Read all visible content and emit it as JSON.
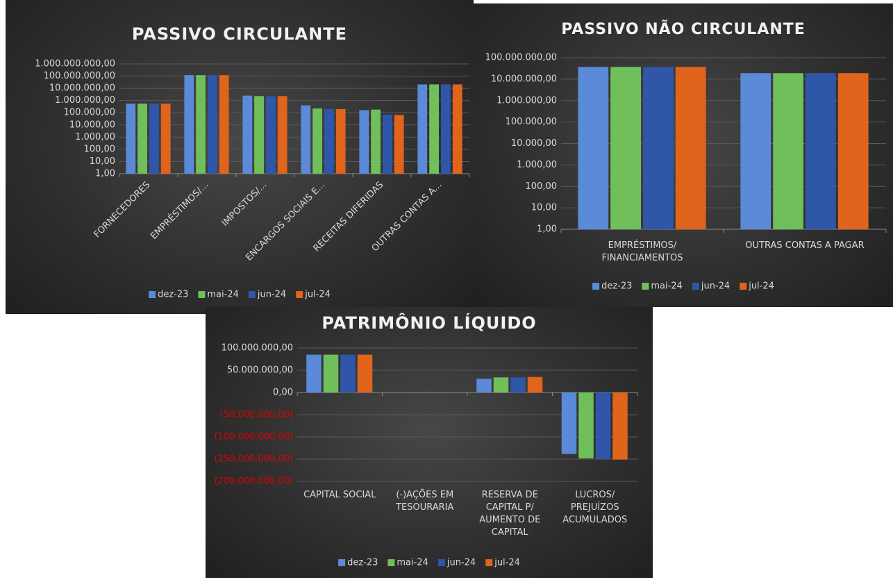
{
  "chart_data": [
    {
      "type": "bar",
      "title": "PASSIVO CIRCULANTE",
      "log_scale": true,
      "grid": true,
      "legend": "bottom",
      "categories": [
        "FORNECEDORES",
        "EMPRÉSTIMOS/...",
        "IMPOSTOS/...",
        "ENCARGOS SOCIAIS E...",
        "RECEITAS DIFERIDAS",
        "OUTRAS CONTAS A..."
      ],
      "series": [
        {
          "name": "dez-23",
          "color": "#5b8ad8",
          "values": [
            550000,
            120000000,
            2500000,
            400000,
            160000,
            21000000
          ]
        },
        {
          "name": "mai-24",
          "color": "#6fc05a",
          "values": [
            550000,
            120000000,
            2300000,
            220000,
            180000,
            21000000
          ]
        },
        {
          "name": "jun-24",
          "color": "#2f56a8",
          "values": [
            550000,
            120000000,
            2300000,
            200000,
            70000,
            21000000
          ]
        },
        {
          "name": "jul-24",
          "color": "#e0641c",
          "values": [
            550000,
            120000000,
            2300000,
            200000,
            65000,
            21000000
          ]
        }
      ],
      "ylim": [
        1,
        1000000000
      ],
      "yticks": [
        {
          "value": 1,
          "label": "1,00"
        },
        {
          "value": 10,
          "label": "10,00"
        },
        {
          "value": 100,
          "label": "100,00"
        },
        {
          "value": 1000,
          "label": "1.000,00"
        },
        {
          "value": 10000,
          "label": "10.000,00"
        },
        {
          "value": 100000,
          "label": "100.000,00"
        },
        {
          "value": 1000000,
          "label": "1.000.000,00"
        },
        {
          "value": 10000000,
          "label": "10.000.000,00"
        },
        {
          "value": 100000000,
          "label": "100.000.000,00"
        },
        {
          "value": 1000000000,
          "label": "1.000.000.000,00"
        }
      ]
    },
    {
      "type": "bar",
      "title": "PASSIVO NÃO CIRCULANTE",
      "log_scale": true,
      "grid": true,
      "legend": "bottom",
      "categories": [
        "EMPRÉSTIMOS/ FINANCIAMENTOS",
        "OUTRAS CONTAS A PAGAR"
      ],
      "series": [
        {
          "name": "dez-23",
          "color": "#5b8ad8",
          "values": [
            37000000,
            19000000
          ]
        },
        {
          "name": "mai-24",
          "color": "#6fc05a",
          "values": [
            37000000,
            19000000
          ]
        },
        {
          "name": "jun-24",
          "color": "#2f56a8",
          "values": [
            37000000,
            19000000
          ]
        },
        {
          "name": "jul-24",
          "color": "#e0641c",
          "values": [
            37000000,
            19000000
          ]
        }
      ],
      "ylim": [
        1,
        100000000
      ],
      "yticks": [
        {
          "value": 1,
          "label": "1,00"
        },
        {
          "value": 10,
          "label": "10,00"
        },
        {
          "value": 100,
          "label": "100,00"
        },
        {
          "value": 1000,
          "label": "1.000,00"
        },
        {
          "value": 10000,
          "label": "10.000,00"
        },
        {
          "value": 100000,
          "label": "100.000,00"
        },
        {
          "value": 1000000,
          "label": "1.000.000,00"
        },
        {
          "value": 10000000,
          "label": "10.000.000,00"
        },
        {
          "value": 100000000,
          "label": "100.000.000,00"
        }
      ]
    },
    {
      "type": "bar",
      "title": "PATRIMÔNIO LÍQUIDO",
      "log_scale": false,
      "grid": true,
      "legend": "bottom",
      "negative_tick_color": "#e00000",
      "categories": [
        "CAPITAL SOCIAL",
        "(-)AÇÕES EM TESOURARIA",
        "RESERVA DE CAPITAL P/ AUMENTO DE CAPITAL",
        "LUCROS/ PREJUÍZOS ACUMULADOS"
      ],
      "series": [
        {
          "name": "dez-23",
          "color": "#5b8ad8",
          "values": [
            85000000,
            0,
            31000000,
            -138000000
          ]
        },
        {
          "name": "mai-24",
          "color": "#6fc05a",
          "values": [
            85000000,
            0,
            34000000,
            -148000000
          ]
        },
        {
          "name": "jun-24",
          "color": "#2f56a8",
          "values": [
            85000000,
            0,
            34000000,
            -150000000
          ]
        },
        {
          "name": "jul-24",
          "color": "#e0641c",
          "values": [
            85000000,
            0,
            35000000,
            -151000000
          ]
        }
      ],
      "ylim": [
        -200000000,
        100000000
      ],
      "yticks": [
        {
          "value": -200000000,
          "label": "(200.000.000,00)"
        },
        {
          "value": -150000000,
          "label": "(150.000.000,00)"
        },
        {
          "value": -100000000,
          "label": "(100.000.000,00)"
        },
        {
          "value": -50000000,
          "label": "(50.000.000,00)"
        },
        {
          "value": 0,
          "label": "0,00"
        },
        {
          "value": 50000000,
          "label": "50.000.000,00"
        },
        {
          "value": 100000000,
          "label": "100.000.000,00"
        }
      ]
    }
  ]
}
